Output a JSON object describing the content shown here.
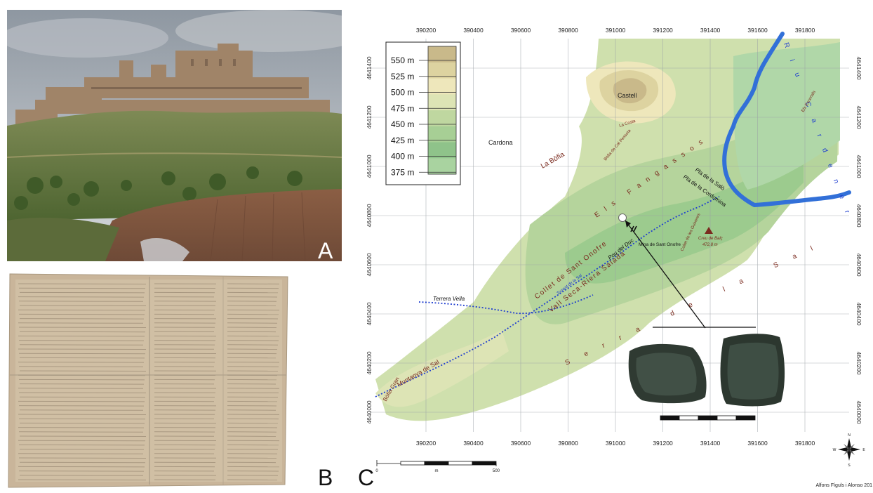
{
  "panels": {
    "a": {
      "letter": "A"
    },
    "b": {
      "letter": "B"
    },
    "c": {
      "letter": "C"
    }
  },
  "map": {
    "x_ticks": [
      "390200",
      "390400",
      "390600",
      "390800",
      "391000",
      "391200",
      "391400",
      "391600",
      "391800"
    ],
    "y_ticks": [
      "4641400",
      "4641200",
      "4641000",
      "4640800",
      "4640600",
      "4640400",
      "4640200",
      "4640000"
    ],
    "legend": {
      "levels": [
        "550 m",
        "525 m",
        "500 m",
        "475 m",
        "450 m",
        "425 m",
        "400 m",
        "375 m"
      ],
      "colors": [
        "#c9b98a",
        "#ddd3a0",
        "#eee7bb",
        "#dde4b5",
        "#bfd7a0",
        "#a7cf95",
        "#8fc38a",
        "#a9d3a0"
      ]
    },
    "labels": {
      "castell": "Castell",
      "cardona": "Cardona",
      "la_costa": "La Costa",
      "bofia_cal_pessota": "Bòfia de Cal Pessota",
      "la_bofia": "La Bòfia",
      "els_fangassos": "Els Fangassos",
      "pla_salo": "Pla de la Salò",
      "pla_cordomina": "Pla de la Cordomina",
      "rio_cardener": "Riu Cardener",
      "els_escorials": "Els Escorials",
      "mina_sant_onofre": "Mina de Sant Onofre",
      "creu_balc": "Creu de Balç",
      "creu_balc_elev": "472,8 m",
      "collet_guixeres": "Collet de les Guixeres",
      "collet_sant_onofre": "Collet de Sant Onofre",
      "torrent_sal": "Torrent de la Sal",
      "pou_duc": "Pou del Duc",
      "vall_seca": "Vall Seca-Riera Salada",
      "terrera_vella": "Terrera Vella",
      "serra_sal": "Serra de la Sal",
      "bofia_gran": "Bòfia Gran",
      "muntanya_sal": "Muntanya de Sal"
    },
    "scale": {
      "start": "0",
      "unit": "m",
      "end": "500"
    },
    "compass": {
      "n": "N",
      "s": "S",
      "e": "E",
      "w": "W"
    },
    "credit": "Alfons Fíguls i Alonso 201"
  }
}
